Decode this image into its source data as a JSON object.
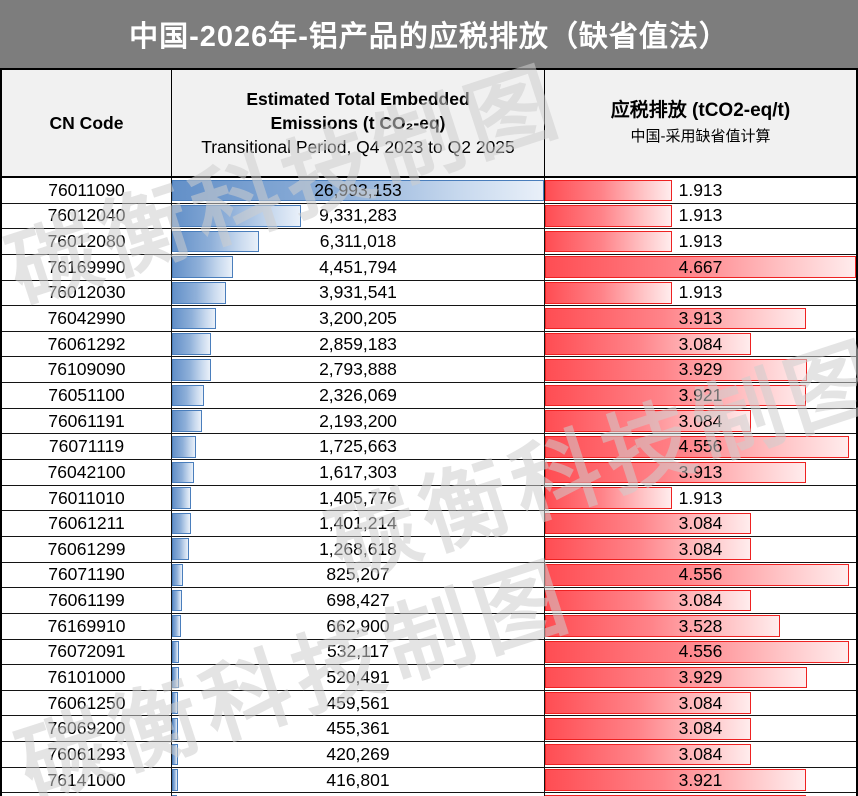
{
  "title": "中国-2026年-铝产品的应税排放（缺省值法）",
  "watermark": "碳衡科技制图",
  "header": {
    "cn_code": "CN Code",
    "emissions_line1": "Estimated Total Embedded",
    "emissions_line2": "Emissions (t CO₂-eq)",
    "emissions_sub": "Transitional Period, Q4 2023 to Q2 2025",
    "tax_title": "应税排放 (tCO2-eq/t)",
    "tax_sub": "中国-采用缺省值计算"
  },
  "colors": {
    "title_bar_bg": "#7d7d7d",
    "header_bg": "#f1f1f1",
    "emissions_bar": "#6390c8",
    "emissions_bar_border": "#4a7ebc",
    "tax_bar": "#ff4d53",
    "tax_bar_border": "#ee2222"
  },
  "chart_data": {
    "type": "table",
    "title": "中国-2026年-铝产品的应税排放（缺省值法）",
    "columns": [
      "CN Code",
      "Estimated Total Embedded Emissions (t CO₂-eq) — Transitional Period, Q4 2023 to Q2 2025",
      "应税排放 (tCO2-eq/t) — 中国-采用缺省值计算"
    ],
    "bar_style": "excel-gradient-data-bars",
    "emissions_axis": [
      0,
      26993153
    ],
    "tax_axis": [
      0,
      4.667
    ],
    "rows": [
      {
        "cn_code": "76011090",
        "emissions": 26993153,
        "emissions_label": "26,993,153",
        "tax": 1.913,
        "tax_label": "1.913"
      },
      {
        "cn_code": "76012040",
        "emissions": 9331283,
        "emissions_label": "9,331,283",
        "tax": 1.913,
        "tax_label": "1.913"
      },
      {
        "cn_code": "76012080",
        "emissions": 6311018,
        "emissions_label": "6,311,018",
        "tax": 1.913,
        "tax_label": "1.913"
      },
      {
        "cn_code": "76169990",
        "emissions": 4451794,
        "emissions_label": "4,451,794",
        "tax": 4.667,
        "tax_label": "4.667"
      },
      {
        "cn_code": "76012030",
        "emissions": 3931541,
        "emissions_label": "3,931,541",
        "tax": 1.913,
        "tax_label": "1.913"
      },
      {
        "cn_code": "76042990",
        "emissions": 3200205,
        "emissions_label": "3,200,205",
        "tax": 3.913,
        "tax_label": "3.913"
      },
      {
        "cn_code": "76061292",
        "emissions": 2859183,
        "emissions_label": "2,859,183",
        "tax": 3.084,
        "tax_label": "3.084"
      },
      {
        "cn_code": "76109090",
        "emissions": 2793888,
        "emissions_label": "2,793,888",
        "tax": 3.929,
        "tax_label": "3.929"
      },
      {
        "cn_code": "76051100",
        "emissions": 2326069,
        "emissions_label": "2,326,069",
        "tax": 3.921,
        "tax_label": "3.921"
      },
      {
        "cn_code": "76061191",
        "emissions": 2193200,
        "emissions_label": "2,193,200",
        "tax": 3.084,
        "tax_label": "3.084"
      },
      {
        "cn_code": "76071119",
        "emissions": 1725663,
        "emissions_label": "1,725,663",
        "tax": 4.556,
        "tax_label": "4.556"
      },
      {
        "cn_code": "76042100",
        "emissions": 1617303,
        "emissions_label": "1,617,303",
        "tax": 3.913,
        "tax_label": "3.913"
      },
      {
        "cn_code": "76011010",
        "emissions": 1405776,
        "emissions_label": "1,405,776",
        "tax": 1.913,
        "tax_label": "1.913"
      },
      {
        "cn_code": "76061211",
        "emissions": 1401214,
        "emissions_label": "1,401,214",
        "tax": 3.084,
        "tax_label": "3.084"
      },
      {
        "cn_code": "76061299",
        "emissions": 1268618,
        "emissions_label": "1,268,618",
        "tax": 3.084,
        "tax_label": "3.084"
      },
      {
        "cn_code": "76071190",
        "emissions": 825207,
        "emissions_label": "825,207",
        "tax": 4.556,
        "tax_label": "4.556"
      },
      {
        "cn_code": "76061199",
        "emissions": 698427,
        "emissions_label": "698,427",
        "tax": 3.084,
        "tax_label": "3.084"
      },
      {
        "cn_code": "76169910",
        "emissions": 662900,
        "emissions_label": "662,900",
        "tax": 3.528,
        "tax_label": "3.528"
      },
      {
        "cn_code": "76072091",
        "emissions": 532117,
        "emissions_label": "532,117",
        "tax": 4.556,
        "tax_label": "4.556"
      },
      {
        "cn_code": "76101000",
        "emissions": 520491,
        "emissions_label": "520,491",
        "tax": 3.929,
        "tax_label": "3.929"
      },
      {
        "cn_code": "76061250",
        "emissions": 459561,
        "emissions_label": "459,561",
        "tax": 3.084,
        "tax_label": "3.084"
      },
      {
        "cn_code": "76069200",
        "emissions": 455361,
        "emissions_label": "455,361",
        "tax": 3.084,
        "tax_label": "3.084"
      },
      {
        "cn_code": "76061293",
        "emissions": 420269,
        "emissions_label": "420,269",
        "tax": 3.084,
        "tax_label": "3.084"
      },
      {
        "cn_code": "76141000",
        "emissions": 416801,
        "emissions_label": "416,801",
        "tax": 3.921,
        "tax_label": "3.921"
      }
    ],
    "clipped_next_row": {
      "visible": true,
      "emissions_frac": 0.013,
      "tax_frac": 0.84
    }
  }
}
